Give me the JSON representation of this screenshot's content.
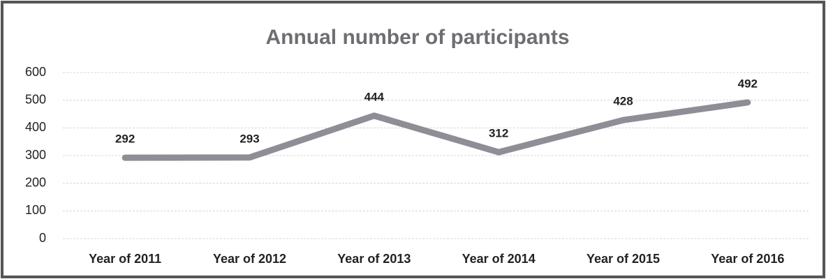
{
  "chart_data": {
    "type": "line",
    "title": "Annual number of participants",
    "categories": [
      "Year of 2011",
      "Year of 2012",
      "Year of 2013",
      "Year of 2014",
      "Year of 2015",
      "Year of 2016"
    ],
    "values": [
      292,
      293,
      444,
      312,
      428,
      492
    ],
    "color": "#8e8e96",
    "ylim": [
      0,
      600
    ],
    "yticks": [
      0,
      100,
      200,
      300,
      400,
      500,
      600
    ],
    "grid": true
  }
}
